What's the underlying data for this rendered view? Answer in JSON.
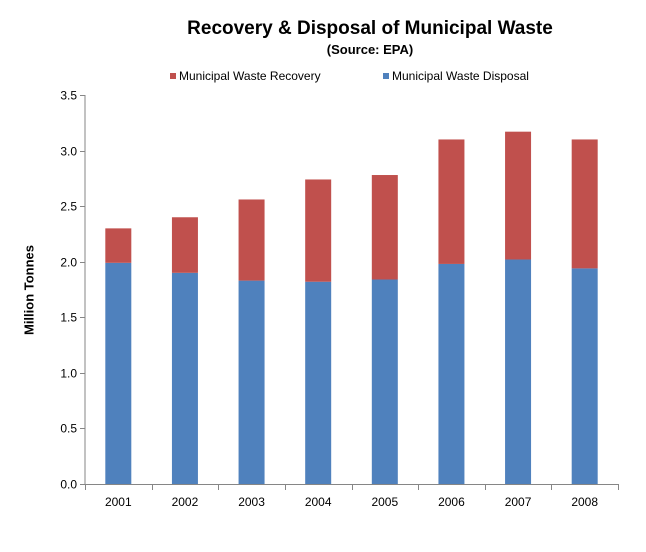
{
  "chart_data": {
    "type": "bar",
    "stacked": true,
    "title": "Recovery & Disposal of Municipal Waste",
    "subtitle": "(Source: EPA)",
    "xlabel": "",
    "ylabel": "Million Tonnes",
    "ylim": [
      0,
      3.5
    ],
    "yticks": [
      "0.0",
      "0.5",
      "1.0",
      "1.5",
      "2.0",
      "2.5",
      "3.0",
      "3.5"
    ],
    "categories": [
      "2001",
      "2002",
      "2003",
      "2004",
      "2005",
      "2006",
      "2007",
      "2008"
    ],
    "series": [
      {
        "name": "Municipal Waste Disposal",
        "color": "#4f81bd",
        "values": [
          1.99,
          1.9,
          1.83,
          1.82,
          1.84,
          1.98,
          2.02,
          1.94
        ]
      },
      {
        "name": "Municipal Waste Recovery",
        "color": "#c0504d",
        "values": [
          0.31,
          0.5,
          0.73,
          0.92,
          0.94,
          1.12,
          1.15,
          1.16
        ]
      }
    ],
    "legend_position": "top"
  }
}
